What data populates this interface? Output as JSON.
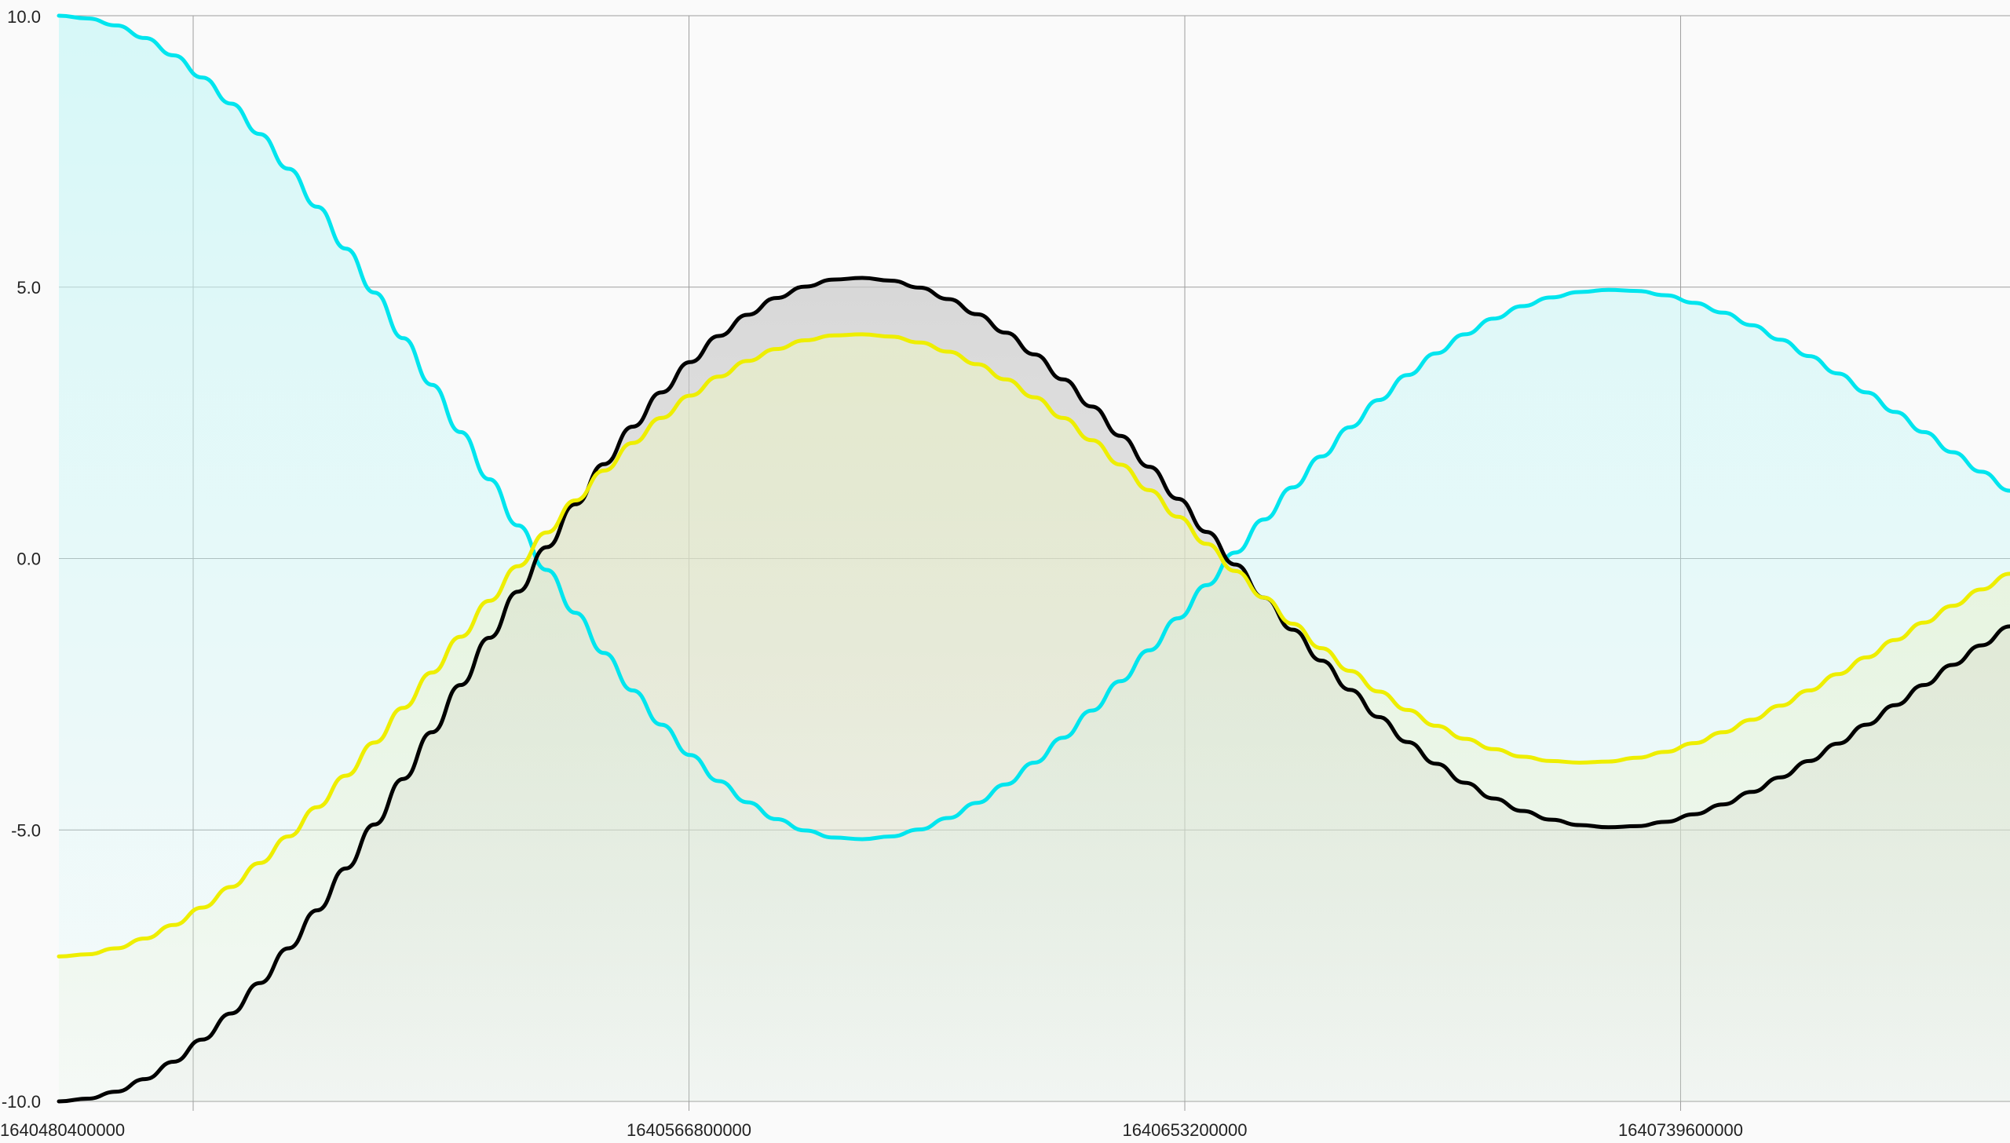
{
  "chart_data": {
    "type": "area",
    "title": "",
    "xlabel": "",
    "ylabel": "",
    "xlim": [
      1640457000000,
      1640797000000
    ],
    "ylim": [
      -10,
      10
    ],
    "x_ticks": [
      1640480400000,
      1640566800000,
      1640653200000,
      1640739600000
    ],
    "x_tick_labels": [
      "1640480400000",
      "1640566800000",
      "1640653200000",
      "1640739600000"
    ],
    "y_ticks": [
      -10,
      -5,
      0,
      5,
      10
    ],
    "y_tick_labels": [
      "-10.0",
      "-5.0",
      "0.0",
      "5.0",
      "10.0"
    ],
    "grid": true,
    "legend": "none",
    "x": [
      1640457000000,
      1640462000000,
      1640467000000,
      1640472000000,
      1640477000000,
      1640482000000,
      1640487000000,
      1640492000000,
      1640497000000,
      1640502000000,
      1640507000000,
      1640512000000,
      1640517000000,
      1640522000000,
      1640527000000,
      1640532000000,
      1640537000000,
      1640542000000,
      1640547000000,
      1640552000000,
      1640557000000,
      1640562000000,
      1640567000000,
      1640572000000,
      1640577000000,
      1640582000000,
      1640587000000,
      1640592000000,
      1640597000000,
      1640602000000,
      1640607000000,
      1640612000000,
      1640617000000,
      1640622000000,
      1640627000000,
      1640632000000,
      1640637000000,
      1640642000000,
      1640647000000,
      1640652000000,
      1640657000000,
      1640662000000,
      1640667000000,
      1640672000000,
      1640677000000,
      1640682000000,
      1640687000000,
      1640692000000,
      1640697000000,
      1640702000000,
      1640707000000,
      1640712000000,
      1640717000000,
      1640722000000,
      1640727000000,
      1640732000000,
      1640737000000,
      1640742000000,
      1640747000000,
      1640752000000,
      1640757000000,
      1640762000000,
      1640767000000,
      1640772000000,
      1640777000000,
      1640782000000,
      1640787000000,
      1640792000000,
      1640797000000
    ],
    "series": [
      {
        "color": "#00e5ee",
        "fill": "#c7f7f7",
        "values": [
          10.0,
          9.95,
          9.82,
          9.59,
          9.27,
          8.86,
          8.38,
          7.82,
          7.18,
          6.48,
          5.71,
          4.9,
          4.06,
          3.2,
          2.33,
          1.46,
          0.61,
          -0.21,
          -1.0,
          -1.74,
          -2.43,
          -3.06,
          -3.62,
          -4.1,
          -4.49,
          -4.8,
          -5.01,
          -5.14,
          -5.17,
          -5.12,
          -4.99,
          -4.78,
          -4.5,
          -4.16,
          -3.76,
          -3.3,
          -2.8,
          -2.26,
          -1.69,
          -1.1,
          -0.49,
          0.11,
          0.72,
          1.31,
          1.88,
          2.42,
          2.92,
          3.38,
          3.78,
          4.13,
          4.42,
          4.65,
          4.81,
          4.91,
          4.95,
          4.93,
          4.85,
          4.71,
          4.53,
          4.3,
          4.03,
          3.73,
          3.41,
          3.06,
          2.7,
          2.33,
          1.96,
          1.6,
          1.25
        ]
      },
      {
        "color": "#000000",
        "fill": "#c9c9c9",
        "values": [
          -10.0,
          -9.95,
          -9.82,
          -9.59,
          -9.27,
          -8.86,
          -8.38,
          -7.82,
          -7.18,
          -6.48,
          -5.71,
          -4.9,
          -4.06,
          -3.2,
          -2.33,
          -1.46,
          -0.61,
          0.21,
          1.0,
          1.74,
          2.43,
          3.06,
          3.62,
          4.1,
          4.49,
          4.8,
          5.01,
          5.14,
          5.17,
          5.12,
          4.99,
          4.78,
          4.5,
          4.16,
          3.76,
          3.3,
          2.8,
          2.26,
          1.69,
          1.1,
          0.49,
          -0.11,
          -0.72,
          -1.31,
          -1.88,
          -2.42,
          -2.92,
          -3.38,
          -3.78,
          -4.13,
          -4.42,
          -4.65,
          -4.81,
          -4.91,
          -4.95,
          -4.93,
          -4.85,
          -4.71,
          -4.53,
          -4.3,
          -4.03,
          -3.73,
          -3.41,
          -3.06,
          -2.7,
          -2.33,
          -1.96,
          -1.6,
          -1.25
        ]
      },
      {
        "color": "#eeee00",
        "fill": "#e8f0c8",
        "values": [
          -7.33,
          -7.29,
          -7.18,
          -7.0,
          -6.75,
          -6.43,
          -6.05,
          -5.61,
          -5.12,
          -4.58,
          -4.0,
          -3.39,
          -2.75,
          -2.1,
          -1.44,
          -0.78,
          -0.14,
          0.48,
          1.07,
          1.62,
          2.13,
          2.59,
          3.0,
          3.35,
          3.64,
          3.86,
          4.02,
          4.11,
          4.13,
          4.09,
          3.98,
          3.81,
          3.58,
          3.3,
          2.97,
          2.59,
          2.18,
          1.73,
          1.26,
          0.77,
          0.27,
          -0.23,
          -0.72,
          -1.2,
          -1.65,
          -2.07,
          -2.45,
          -2.79,
          -3.08,
          -3.32,
          -3.51,
          -3.65,
          -3.73,
          -3.76,
          -3.74,
          -3.67,
          -3.56,
          -3.4,
          -3.2,
          -2.97,
          -2.71,
          -2.43,
          -2.13,
          -1.82,
          -1.5,
          -1.18,
          -0.87,
          -0.57,
          -0.28
        ]
      }
    ]
  }
}
